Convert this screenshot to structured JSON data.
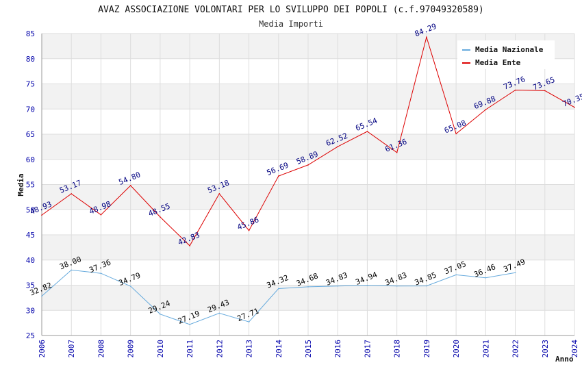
{
  "chart_data": {
    "type": "line",
    "title": "AVAZ ASSOCIAZIONE VOLONTARI PER LO SVILUPPO DEI POPOLI (c.f.97049320589)",
    "subtitle": "Media Importi",
    "xlabel": "Anno",
    "ylabel": "Media",
    "ylim": [
      25,
      85
    ],
    "yticks": [
      "25",
      "30",
      "35",
      "40",
      "45",
      "50",
      "55",
      "60",
      "65",
      "70",
      "75",
      "80",
      "85"
    ],
    "categories": [
      "2006",
      "2007",
      "2008",
      "2009",
      "2010",
      "2011",
      "2012",
      "2013",
      "2014",
      "2015",
      "2016",
      "2017",
      "2018",
      "2019",
      "2020",
      "2021",
      "2022",
      "2023",
      "2024"
    ],
    "grid": true,
    "legend_position": "top-right",
    "series": [
      {
        "name": "Media Nazionale",
        "color": "#66aadd",
        "label_color": "#000000",
        "values": [
          32.82,
          38.0,
          37.36,
          34.79,
          29.24,
          27.19,
          29.43,
          27.71,
          34.32,
          34.68,
          34.83,
          34.94,
          34.83,
          34.85,
          37.05,
          36.46,
          37.49,
          null,
          null
        ],
        "labels": [
          "32.82",
          "38.00",
          "37.36",
          "34.79",
          "29.24",
          "27.19",
          "29.43",
          "27.71",
          "34.32",
          "34.68",
          "34.83",
          "34.94",
          "34.83",
          "34.85",
          "37.05",
          "36.46",
          "37.49",
          null,
          null
        ]
      },
      {
        "name": "Media Ente",
        "color": "#dd0000",
        "label_color": "#000080",
        "values": [
          48.93,
          53.17,
          48.98,
          54.8,
          48.55,
          42.83,
          53.18,
          45.86,
          56.69,
          58.89,
          62.52,
          65.54,
          61.36,
          84.29,
          65.08,
          69.88,
          73.76,
          73.65,
          70.35
        ],
        "labels": [
          "48.93",
          "53.17",
          "48.98",
          "54.80",
          "48.55",
          "42.83",
          "53.18",
          "45.86",
          "56.69",
          "58.89",
          "62.52",
          "65.54",
          "61.36",
          "84.29",
          "65.08",
          "69.88",
          "73.76",
          "73.65",
          "70.35"
        ]
      }
    ]
  }
}
